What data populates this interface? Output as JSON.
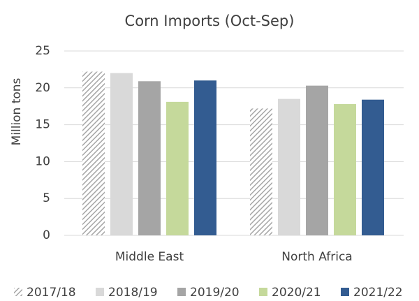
{
  "chart_data": {
    "type": "bar",
    "title": "Corn Imports (Oct-Sep)",
    "ylabel": "Million tons",
    "categories": [
      "Middle East",
      "North Africa"
    ],
    "series": [
      {
        "name": "2017/18",
        "color": "#a6a6a6",
        "pattern": "hatch",
        "values": [
          22.2,
          17.2
        ]
      },
      {
        "name": "2018/19",
        "color": "#d9d9d9",
        "values": [
          22.0,
          18.5
        ]
      },
      {
        "name": "2019/20",
        "color": "#a5a5a5",
        "values": [
          20.9,
          20.3
        ]
      },
      {
        "name": "2020/21",
        "color": "#c5d99b",
        "values": [
          18.1,
          17.8
        ]
      },
      {
        "name": "2021/22",
        "color": "#335c91",
        "values": [
          21.0,
          18.4
        ]
      }
    ],
    "ylim": [
      0,
      25
    ],
    "yticks": [
      0,
      5,
      10,
      15,
      20,
      25
    ],
    "grid": true,
    "legend": "bottom"
  }
}
